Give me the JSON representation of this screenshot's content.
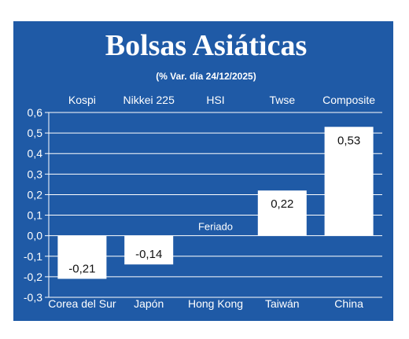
{
  "chart_data": {
    "type": "bar",
    "title": "Bolsas Asiáticas",
    "subtitle": "(% Var. día  24/12/2025)",
    "categories": [
      "Corea del Sur",
      "Japón",
      "Hong Kong",
      "Taiwán",
      "China"
    ],
    "indices": [
      "Kospi",
      "Nikkei 225",
      "HSI",
      "Twse",
      "Composite"
    ],
    "values": [
      -0.21,
      -0.14,
      null,
      0.22,
      0.53
    ],
    "value_labels": [
      "-0,21",
      "-0,14",
      "",
      "0,22",
      "0,53"
    ],
    "notes": [
      "",
      "",
      "Feriado",
      "",
      ""
    ],
    "yticks": [
      "0,6",
      "0,5",
      "0,4",
      "0,3",
      "0,2",
      "0,1",
      "0,0",
      "-0,1",
      "-0,2",
      "-0,3"
    ],
    "ylim": [
      -0.3,
      0.6
    ],
    "grid": true,
    "colors": {
      "background": "#1f5aa6",
      "bar": "#ffffff",
      "grid": "#ffffff"
    }
  }
}
